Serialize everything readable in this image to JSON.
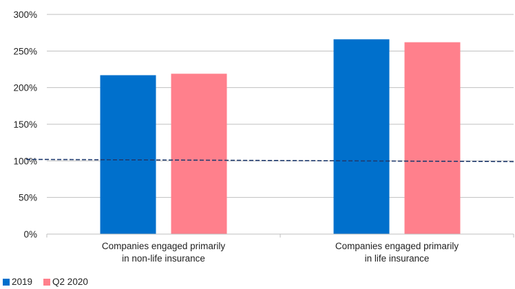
{
  "chart_data": {
    "type": "bar",
    "categories": [
      [
        "Companies engaged primarily",
        "in non-life insurance"
      ],
      [
        "Companies engaged primarily",
        "in life insurance"
      ]
    ],
    "series": [
      {
        "name": "2019",
        "color": "#0070CC",
        "values": [
          217,
          266
        ]
      },
      {
        "name": "Q2 2020",
        "color": "#FF808C",
        "values": [
          219,
          262
        ]
      }
    ],
    "reference_line": {
      "start": 102,
      "end": 99,
      "color": "#1F3A6E",
      "style": "dashed"
    },
    "y_ticks": [
      "0%",
      "50%",
      "100%",
      "150%",
      "200%",
      "250%",
      "300%"
    ],
    "y_tick_values": [
      0,
      50,
      100,
      150,
      200,
      250,
      300
    ],
    "ylim": [
      0,
      300
    ],
    "grid": true,
    "legend_position": "bottom-left"
  }
}
